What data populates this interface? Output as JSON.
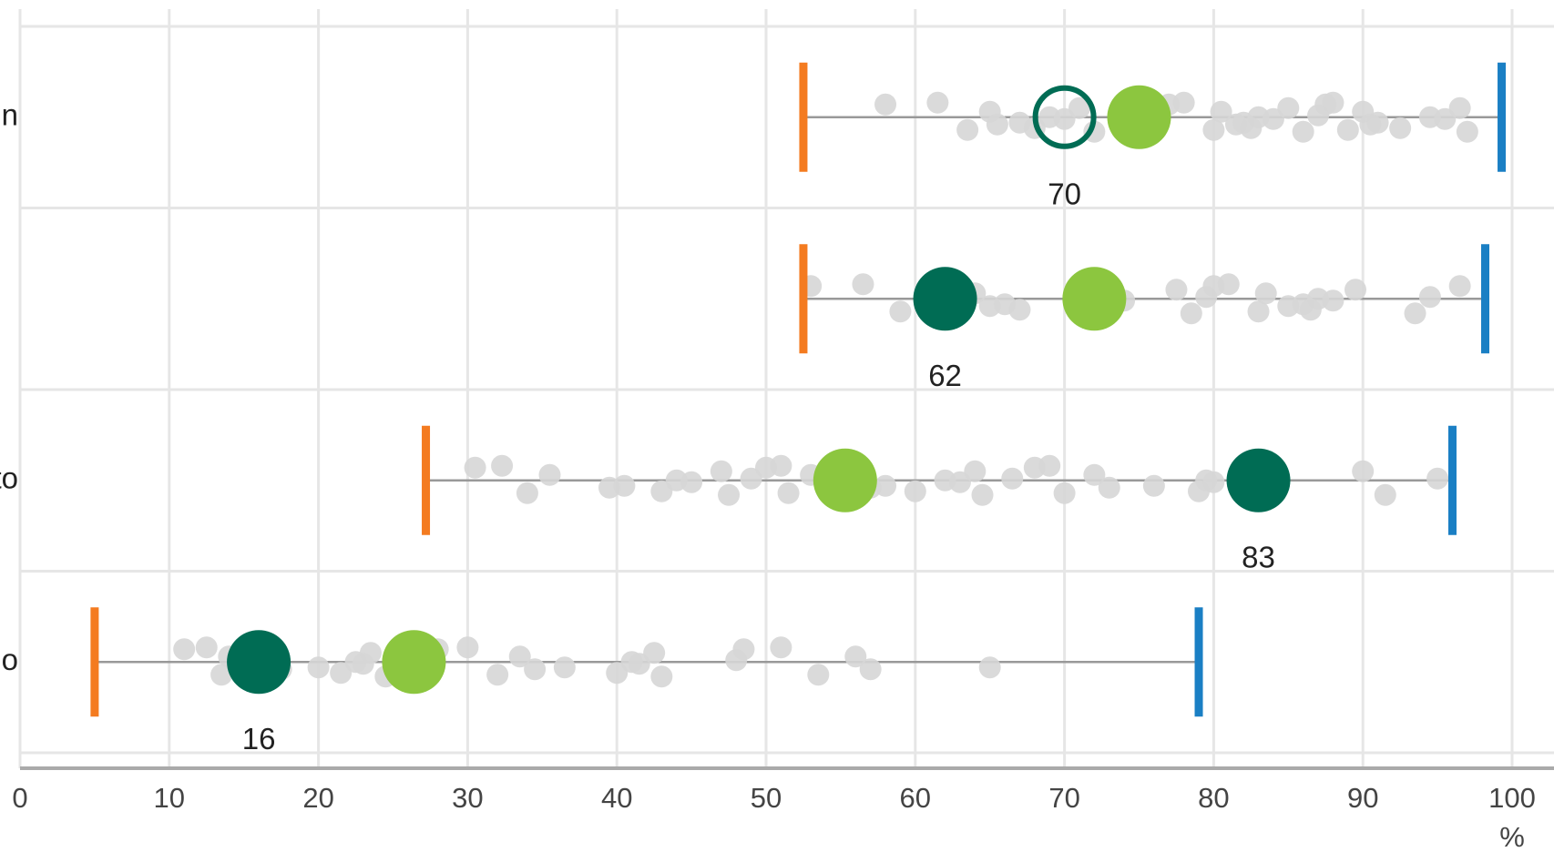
{
  "chart_data": {
    "type": "strip",
    "x_label": "%",
    "xlim": [
      0,
      100
    ],
    "xticks": [
      0,
      10,
      20,
      30,
      40,
      50,
      60,
      70,
      80,
      90,
      100
    ],
    "grid": true,
    "colors": {
      "min": "#f47b20",
      "max": "#1a7fc4",
      "value": "#006c54",
      "mean": "#8cc63f",
      "others": "#d6d6d6"
    },
    "categories": [
      "n",
      null,
      "to",
      "o"
    ],
    "rows": [
      {
        "min": 52.5,
        "max": 99.3,
        "value": 70,
        "value_label": "70",
        "hollow": true,
        "mean": 75,
        "others": [
          58,
          61.5,
          63.5,
          65,
          65.5,
          67,
          68,
          69,
          70,
          71,
          72,
          74,
          77,
          78,
          80,
          80.5,
          81.5,
          82,
          82.5,
          83,
          84,
          85,
          86,
          87,
          87.5,
          88,
          89,
          90,
          90.5,
          91,
          92.5,
          94.5,
          95.5,
          96.5,
          97
        ]
      },
      {
        "min": 52.5,
        "max": 98.2,
        "value": 62,
        "value_label": "62",
        "hollow": false,
        "mean": 72,
        "others": [
          53,
          56.5,
          59,
          64,
          65,
          66,
          67,
          73,
          74,
          77.5,
          78.5,
          79.5,
          80,
          81,
          83,
          83.5,
          85,
          86,
          86.5,
          87,
          88,
          89.5,
          93.5,
          94.5,
          96.5
        ]
      },
      {
        "min": 27.2,
        "max": 96,
        "value": 83,
        "value_label": "83",
        "hollow": false,
        "mean": 55.3,
        "others": [
          30.5,
          32.3,
          34,
          35.5,
          39.5,
          40.5,
          43,
          44,
          45,
          47,
          47.5,
          49,
          50,
          51,
          51.5,
          53,
          57,
          58,
          60,
          62,
          63,
          64,
          64.5,
          66.5,
          68,
          69,
          70,
          72,
          73,
          76,
          79,
          79.5,
          80,
          90,
          91.5,
          95
        ]
      },
      {
        "min": 5,
        "max": 79,
        "value": 16,
        "value_label": "16",
        "hollow": false,
        "mean": 26.4,
        "others": [
          11,
          12.5,
          13.5,
          14,
          17.5,
          20,
          21.5,
          22.5,
          23,
          23.5,
          24.5,
          25,
          28,
          30,
          32,
          33.5,
          34.5,
          36.5,
          40,
          41,
          41.5,
          42.5,
          43,
          48,
          48.5,
          51,
          53.5,
          56,
          57,
          65
        ]
      }
    ]
  }
}
